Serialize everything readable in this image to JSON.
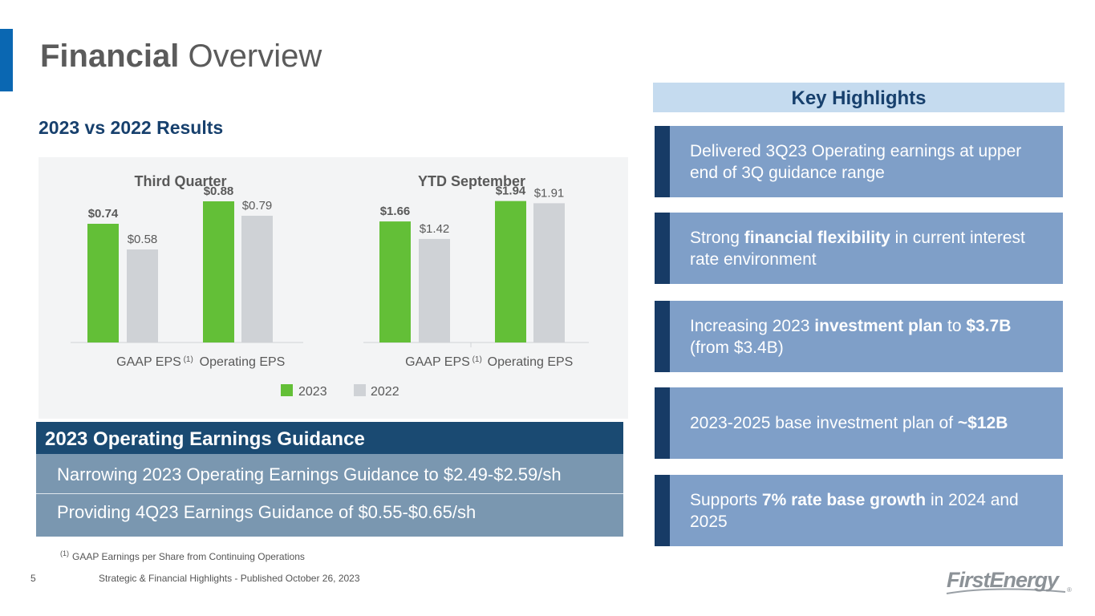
{
  "title": {
    "bold": "Financial",
    "rest": "Overview"
  },
  "subtitle": "2023 vs 2022 Results",
  "chart_data": [
    {
      "type": "bar",
      "title": "Third Quarter",
      "categories": [
        "GAAP EPS",
        "Operating EPS"
      ],
      "category_notes": [
        "(1)",
        ""
      ],
      "series": [
        {
          "name": "2023",
          "values": [
            0.74,
            0.88
          ],
          "labels": [
            "$0.74",
            "$0.88"
          ]
        },
        {
          "name": "2022",
          "values": [
            0.58,
            0.79
          ],
          "labels": [
            "$0.58",
            "$0.79"
          ]
        }
      ],
      "ylim": [
        0,
        1.0
      ],
      "xlabel": "",
      "ylabel": ""
    },
    {
      "type": "bar",
      "title": "YTD September",
      "categories": [
        "GAAP EPS",
        "Operating EPS"
      ],
      "category_notes": [
        "(1)",
        ""
      ],
      "series": [
        {
          "name": "2023",
          "values": [
            1.66,
            1.94
          ],
          "labels": [
            "$1.66",
            "$1.94"
          ]
        },
        {
          "name": "2022",
          "values": [
            1.42,
            1.91
          ],
          "labels": [
            "$1.42",
            "$1.91"
          ]
        }
      ],
      "ylim": [
        0,
        2.2
      ],
      "xlabel": "",
      "ylabel": ""
    }
  ],
  "legend": [
    {
      "name": "2023",
      "color": "#63bf37"
    },
    {
      "name": "2022",
      "color": "#cfd2d6"
    }
  ],
  "colors": {
    "series_2023": "#63bf37",
    "series_2022": "#cfd2d6",
    "accent": "#0a67b2",
    "navy": "#173b66"
  },
  "guidance": {
    "header": "2023 Operating Earnings Guidance",
    "rows": [
      "Narrowing 2023 Operating Earnings Guidance to $2.49-$2.59/sh",
      "Providing 4Q23 Earnings Guidance of $0.55-$0.65/sh"
    ]
  },
  "footnote": {
    "marker": "(1)",
    "text": "GAAP Earnings per Share from Continuing Operations"
  },
  "page_number": "5",
  "footer": "Strategic & Financial Highlights - Published October 26, 2023",
  "key_highlights": {
    "header": "Key Highlights",
    "items": [
      {
        "parts": [
          "Delivered 3Q23 Operating earnings at upper end of 3Q guidance range"
        ]
      },
      {
        "parts": [
          "Strong ",
          "financial flexibility",
          " in current interest rate environment"
        ]
      },
      {
        "parts": [
          "Increasing 2023 ",
          "investment plan",
          " to ",
          "$3.7B",
          " (from $3.4B)"
        ]
      },
      {
        "parts": [
          "2023-2025 base investment plan of ",
          "~$12B"
        ]
      },
      {
        "parts": [
          "Supports ",
          "7% rate base growth",
          " in 2024 and 2025"
        ]
      }
    ]
  },
  "logo": {
    "text": "FirstEnergy",
    "mark": "®"
  }
}
